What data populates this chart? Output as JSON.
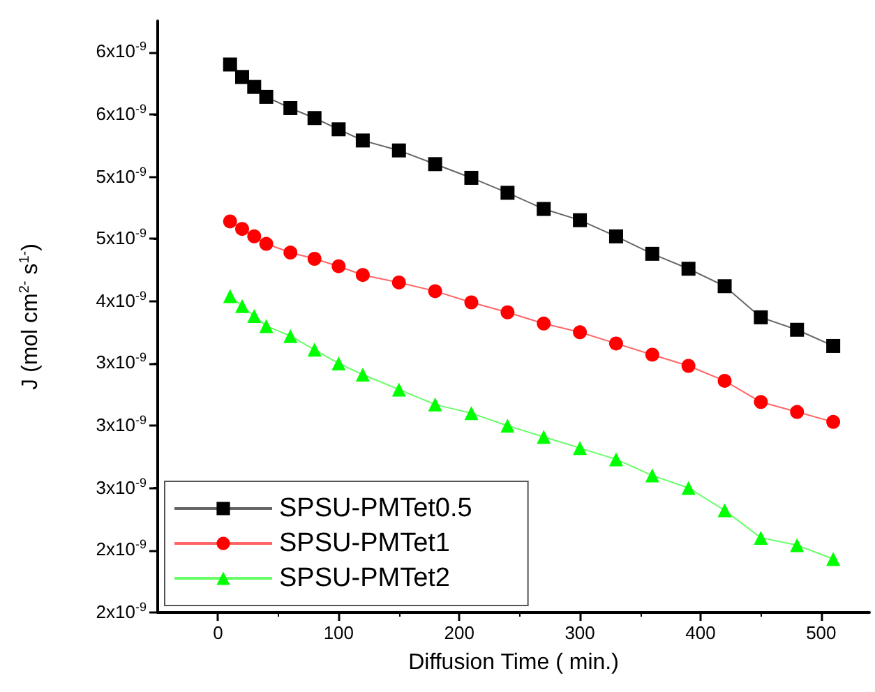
{
  "chart_data": {
    "type": "line",
    "xlabel": "Diffusion Time ( min.)",
    "ylabel": "J (mol cm$^{2-}$ s$^{1-}$)",
    "x": [
      10,
      20,
      30,
      40,
      60,
      80,
      100,
      120,
      150,
      180,
      210,
      240,
      270,
      300,
      330,
      360,
      390,
      420,
      450,
      480,
      510
    ],
    "series": [
      {
        "name": "SPSU-PMTet0.5",
        "color": "#000000",
        "marker": "square",
        "values": [
          5.9e-09,
          5.8e-09,
          5.72e-09,
          5.64e-09,
          5.55e-09,
          5.47e-09,
          5.38e-09,
          5.29e-09,
          5.21e-09,
          5.1e-09,
          4.99e-09,
          4.87e-09,
          4.74e-09,
          4.65e-09,
          4.52e-09,
          4.38e-09,
          4.26e-09,
          4.12e-09,
          3.87e-09,
          3.77e-09,
          3.64e-09
        ]
      },
      {
        "name": "SPSU-PMTet1",
        "color": "#ff0000",
        "marker": "circle",
        "values": [
          4.64e-09,
          4.58e-09,
          4.52e-09,
          4.46e-09,
          4.39e-09,
          4.34e-09,
          4.28e-09,
          4.21e-09,
          4.15e-09,
          4.08e-09,
          3.99e-09,
          3.91e-09,
          3.82e-09,
          3.75e-09,
          3.66e-09,
          3.57e-09,
          3.48e-09,
          3.36e-09,
          3.19e-09,
          3.11e-09,
          3.03e-09
        ]
      },
      {
        "name": "SPSU-PMTet2",
        "color": "#00ff00",
        "marker": "triangle",
        "values": [
          4.04e-09,
          3.96e-09,
          3.88e-09,
          3.8e-09,
          3.72e-09,
          3.61e-09,
          3.5e-09,
          3.41e-09,
          3.29e-09,
          3.17e-09,
          3.1e-09,
          3e-09,
          2.91e-09,
          2.82e-09,
          2.73e-09,
          2.6e-09,
          2.5e-09,
          2.32e-09,
          2.1e-09,
          2.04e-09,
          1.93e-09
        ]
      }
    ],
    "xlim": [
      -50,
      540
    ],
    "xticks": [
      0,
      100,
      200,
      300,
      400,
      500
    ],
    "ylim": [
      1.5e-09,
      6.25e-09
    ],
    "yticks": [
      {
        "value": 1.5e-09,
        "label": "2x10$^{-9}$"
      },
      {
        "value": 2e-09,
        "label": "2x10$^{-9}$"
      },
      {
        "value": 2.5e-09,
        "label": "3x10$^{-9}$"
      },
      {
        "value": 3e-09,
        "label": "3x10$^{-9}$"
      },
      {
        "value": 3.5e-09,
        "label": "3x10$^{-9}$"
      },
      {
        "value": 4e-09,
        "label": "4x10$^{-9}$"
      },
      {
        "value": 4.5e-09,
        "label": "5x10$^{-9}$"
      },
      {
        "value": 5e-09,
        "label": "5x10$^{-9}$"
      },
      {
        "value": 5.5e-09,
        "label": "6x10$^{-9}$"
      },
      {
        "value": 6e-09,
        "label": "6x10$^{-9}$"
      }
    ],
    "grid": false,
    "legend": "bottom left",
    "line_style": "solid"
  }
}
